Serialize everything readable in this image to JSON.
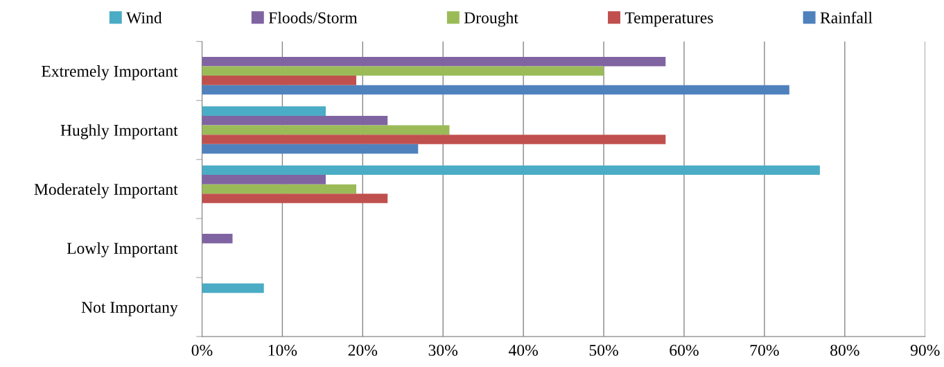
{
  "chart_data": {
    "type": "bar",
    "orientation": "horizontal",
    "categories": [
      "Extremely Important",
      "Hughly Important",
      "Moderately Important",
      "Lowly Important",
      "Not Importany"
    ],
    "series": [
      {
        "name": "Wind",
        "color": "#4bacc6",
        "values": [
          0,
          15.4,
          76.9,
          0,
          7.7
        ]
      },
      {
        "name": "Floods/Storm",
        "color": "#8064a2",
        "values": [
          57.7,
          23.1,
          15.4,
          3.8,
          0
        ]
      },
      {
        "name": "Drought",
        "color": "#9bbb59",
        "values": [
          50,
          30.8,
          19.2,
          0,
          0
        ]
      },
      {
        "name": "Temperatures",
        "color": "#c0504d",
        "values": [
          19.2,
          57.7,
          23.1,
          0,
          0
        ]
      },
      {
        "name": "Rainfall",
        "color": "#4f81bd",
        "values": [
          73.1,
          26.9,
          0,
          0,
          0
        ]
      }
    ],
    "xlim": [
      0,
      90
    ],
    "xticks": [
      {
        "value": 0,
        "label": "0%"
      },
      {
        "value": 10,
        "label": "10%"
      },
      {
        "value": 20,
        "label": "20%"
      },
      {
        "value": 30,
        "label": "30%"
      },
      {
        "value": 40,
        "label": "40%"
      },
      {
        "value": 50,
        "label": "50%"
      },
      {
        "value": 60,
        "label": "60%"
      },
      {
        "value": 70,
        "label": "70%"
      },
      {
        "value": 80,
        "label": "80%"
      },
      {
        "value": 90,
        "label": "90%"
      }
    ],
    "grid": "x",
    "legend": "top"
  }
}
